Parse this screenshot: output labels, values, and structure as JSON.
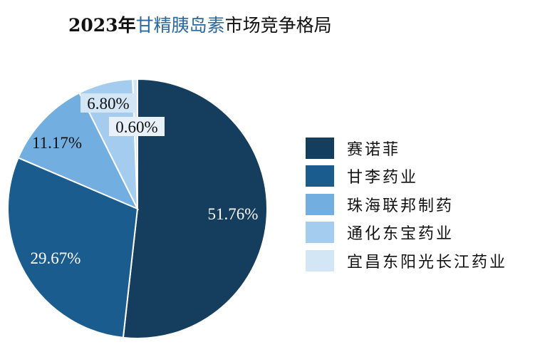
{
  "title": {
    "year": "2023年",
    "highlight": "甘精胰岛素",
    "rest": "市场竞争格局"
  },
  "chart_data": {
    "type": "pie",
    "title": "2023年甘精胰岛素市场竞争格局",
    "categories": [
      "赛诺菲",
      "甘李药业",
      "珠海联邦制药",
      "通化东宝药业",
      "宜昌东阳光长江药业"
    ],
    "values": [
      51.76,
      29.67,
      11.17,
      6.8,
      0.6
    ],
    "labels": [
      "51.76%",
      "29.67%",
      "11.17%",
      "6.80%",
      "0.60%"
    ],
    "colors": [
      "#143D5E",
      "#1B5C8F",
      "#72AEE0",
      "#A4CCEE",
      "#D3E6F5"
    ],
    "start": "12 o'clock, clockwise",
    "legend": "right"
  }
}
